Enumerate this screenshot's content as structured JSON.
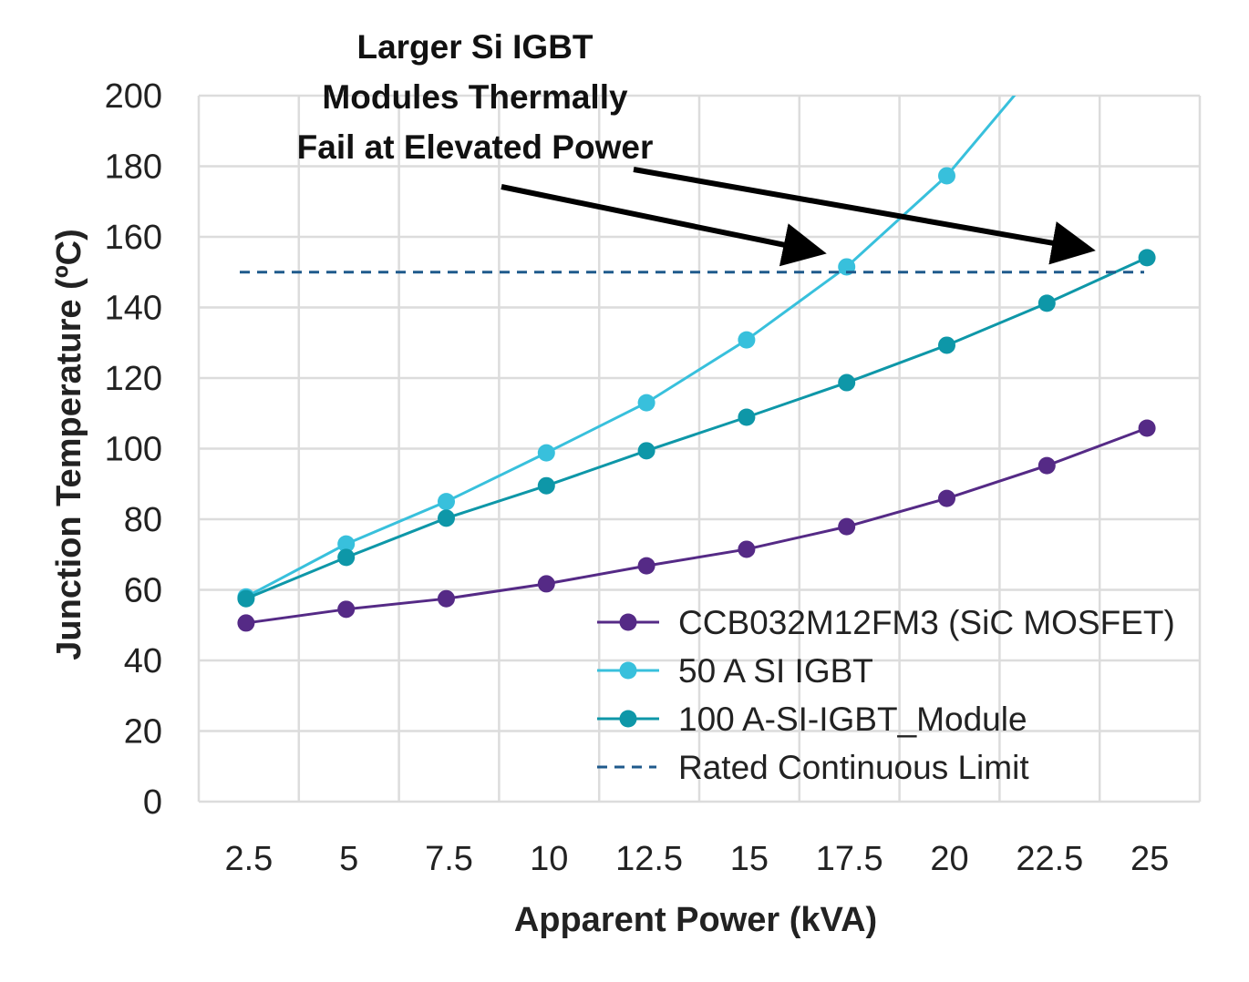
{
  "chart_data": {
    "type": "line",
    "title": "",
    "annotation": [
      "Larger Si IGBT",
      "Modules Thermally",
      "Fail at Elevated Power"
    ],
    "xlabel": "Apparent Power (kVA)",
    "ylabel": "Junction Temperature (ºC)",
    "categories": [
      "2.5",
      "5",
      "7.5",
      "10",
      "12.5",
      "15",
      "17.5",
      "20",
      "22.5",
      "25"
    ],
    "ylim": [
      0,
      200
    ],
    "yticks": [
      "0",
      "20",
      "40",
      "60",
      "80",
      "100",
      "120",
      "140",
      "160",
      "180",
      "200"
    ],
    "grid": true,
    "legend_position": "bottom-right",
    "series": [
      {
        "name": "CCB032M12FM3 (SiC MOSFET)",
        "color": "#552a86",
        "style": "line-marker",
        "values": [
          50.6,
          54.5,
          57.5,
          61.7,
          66.8,
          71.5,
          77.9,
          85.9,
          95.2,
          105.8
        ]
      },
      {
        "name": "50 A SI IGBT",
        "color": "#38c0dc",
        "style": "line-marker",
        "values": [
          58,
          73,
          85,
          98.8,
          113,
          130.8,
          151.5,
          177.3,
          211,
          null
        ]
      },
      {
        "name": "100 A-SI-IGBT_Module",
        "color": "#0e97a8",
        "style": "line-marker",
        "values": [
          57.5,
          69.2,
          80.3,
          89.5,
          99.4,
          108.9,
          118.7,
          129.3,
          141.2,
          154.1
        ]
      },
      {
        "name": "Rated Continuous Limit",
        "color": "#1f5a8c",
        "style": "dashed",
        "values": [
          150,
          150,
          150,
          150,
          150,
          150,
          150,
          150,
          150,
          150
        ]
      }
    ]
  }
}
